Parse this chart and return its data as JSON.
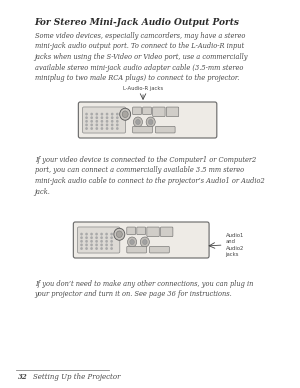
{
  "bg_color": "#ffffff",
  "title": "For Stereo Mini-Jack Audio Output Ports",
  "para1_lines": [
    "Some video devices, especially camcorders, may have a stereo",
    "mini-jack audio output port. To connect to the L-Audio-R input",
    "jacks when using the S-Video or Video port, use a commercially",
    "available stereo mini-jack audio adapter cable (3.5-mm stereo",
    "miniplug to two male RCA plugs) to connect to the projector."
  ],
  "label1": "L-Audio-R jacks",
  "para2_lines": [
    "If your video device is connected to the Computer1 or Computer2",
    "port, you can connect a commercially available 3.5 mm stereo",
    "mini-jack audio cable to connect to the projector’s Audio1 or Audio2",
    "jack."
  ],
  "label2": "Audio1\nand\nAudio2\njacks",
  "para3_lines": [
    "If you don’t need to make any other connections, you can plug in",
    "your projector and turn it on. See page 36 for instructions."
  ],
  "footer_page": "32",
  "footer_text": "Setting Up the Projector",
  "text_color": "#4a4a4a",
  "title_color": "#2c2c2c"
}
